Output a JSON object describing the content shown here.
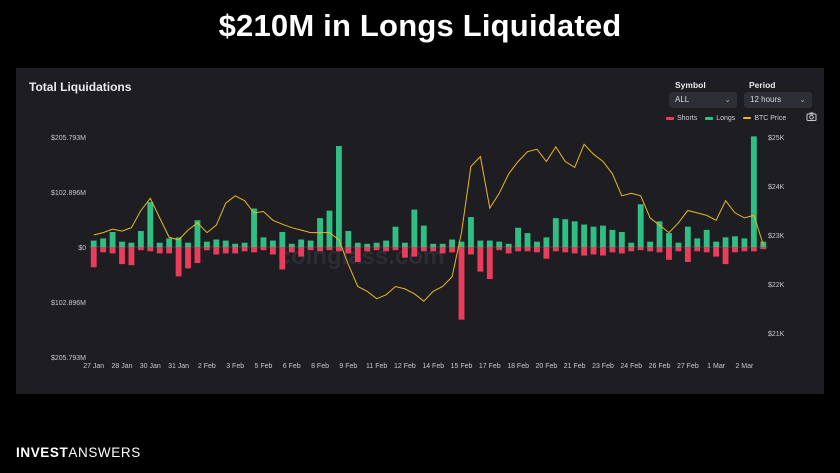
{
  "headline": "$210M in Longs Liquidated",
  "panel": {
    "title": "Total Liquidations",
    "symbol_label": "Symbol",
    "symbol_value": "ALL",
    "period_label": "Period",
    "period_value": "12 hours",
    "legend": [
      {
        "name": "Shorts",
        "color": "#ea3d5c"
      },
      {
        "name": "Longs",
        "color": "#2fbf85"
      },
      {
        "name": "BTC Price",
        "color": "#e8b91c"
      }
    ]
  },
  "watermark": "coinglass.com",
  "footer": {
    "brand_bold": "INVEST",
    "brand_light": "ANSWERS"
  },
  "colors": {
    "longs": "#2fbf85",
    "shorts": "#ea3d5c",
    "price": "#e8b91c",
    "background": "#1d1d22"
  },
  "chart_data": {
    "type": "bar",
    "title": "Total Liquidations",
    "left_ticks": [
      "$205.793M",
      "$102.896M",
      "$0",
      "$102.896M",
      "$205.793M"
    ],
    "left_tick_values": [
      205.793,
      102.896,
      0,
      -102.896,
      -205.793
    ],
    "right_ticks": [
      "$25K",
      "$24K",
      "$23K",
      "$22K",
      "$21K"
    ],
    "right_tick_values": [
      25000,
      24000,
      23000,
      22000,
      21000
    ],
    "ylim_liquidations": [
      -205.793,
      205.793
    ],
    "ylim_price": [
      20600,
      25000
    ],
    "x_ticks": [
      "27 Jan",
      "28 Jan",
      "30 Jan",
      "31 Jan",
      "2 Feb",
      "3 Feb",
      "5 Feb",
      "6 Feb",
      "8 Feb",
      "9 Feb",
      "11 Feb",
      "12 Feb",
      "14 Feb",
      "15 Feb",
      "17 Feb",
      "18 Feb",
      "20 Feb",
      "21 Feb",
      "23 Feb",
      "24 Feb",
      "26 Feb",
      "27 Feb",
      "1 Mar",
      "2 Mar"
    ],
    "x_tick_positions": [
      0,
      3,
      6,
      9,
      12,
      15,
      18,
      21,
      24,
      27,
      30,
      33,
      36,
      39,
      42,
      45,
      48,
      51,
      54,
      57,
      60,
      63,
      66,
      69
    ],
    "series": [
      {
        "name": "Longs",
        "values": [
          12,
          16,
          28,
          10,
          8,
          30,
          84,
          8,
          16,
          18,
          8,
          50,
          10,
          14,
          12,
          6,
          8,
          72,
          18,
          12,
          28,
          6,
          14,
          12,
          54,
          68,
          189,
          30,
          8,
          6,
          8,
          12,
          38,
          8,
          70,
          40,
          6,
          6,
          14,
          10,
          56,
          12,
          12,
          10,
          6,
          36,
          26,
          10,
          18,
          54,
          52,
          48,
          42,
          38,
          40,
          32,
          28,
          8,
          80,
          10,
          48,
          26,
          8,
          38,
          16,
          32,
          10,
          18,
          20,
          16,
          207,
          10
        ]
      },
      {
        "name": "Shorts",
        "values": [
          -38,
          -10,
          -12,
          -32,
          -34,
          -6,
          -8,
          -12,
          -12,
          -55,
          -40,
          -30,
          -6,
          -14,
          -12,
          -12,
          -8,
          -10,
          -6,
          -14,
          -42,
          -10,
          -18,
          -6,
          -8,
          -6,
          -8,
          -12,
          -28,
          -8,
          -6,
          -8,
          -6,
          -20,
          -18,
          -8,
          -8,
          -12,
          -10,
          -136,
          -14,
          -46,
          -60,
          -6,
          -12,
          -8,
          -8,
          -10,
          -22,
          -8,
          -10,
          -12,
          -16,
          -14,
          -16,
          -10,
          -12,
          -8,
          -6,
          -8,
          -10,
          -24,
          -8,
          -28,
          -8,
          -10,
          -18,
          -32,
          -10,
          -8,
          -8,
          -4
        ]
      },
      {
        "name": "BTC Price",
        "values": [
          23000,
          23050,
          23120,
          23080,
          23150,
          23500,
          23750,
          23350,
          22950,
          22900,
          23100,
          23250,
          23050,
          23200,
          23650,
          23800,
          23700,
          23450,
          23480,
          23300,
          23220,
          23150,
          23100,
          23050,
          23050,
          23050,
          22900,
          22400,
          21950,
          21850,
          21700,
          21780,
          21950,
          21900,
          21800,
          21650,
          21850,
          21950,
          22150,
          23050,
          24400,
          24600,
          23550,
          23850,
          24250,
          24500,
          24700,
          24750,
          24500,
          24800,
          24500,
          24380,
          24850,
          24650,
          24500,
          24250,
          23800,
          23850,
          23800,
          23350,
          23200,
          23050,
          23250,
          23500,
          23450,
          23400,
          23300,
          23700,
          23450,
          23350,
          23400,
          22800
        ]
      }
    ]
  }
}
